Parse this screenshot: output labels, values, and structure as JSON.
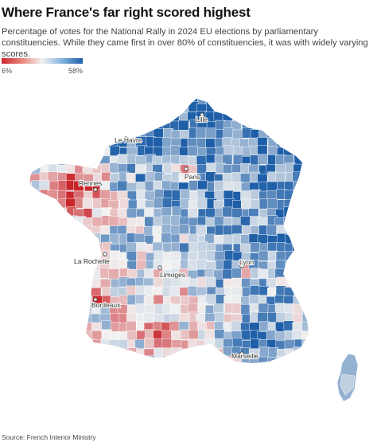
{
  "header": {
    "title": "Where France's far right scored highest",
    "subtitle": "Percentage of votes for the National Rally in 2024 EU elections by parliamentary constituencies. While they came first in over 80% of constituencies, it was with widely varying scores."
  },
  "legend": {
    "min_label": "6%",
    "max_label": "58%",
    "min_value": 6,
    "max_value": 58,
    "colors": {
      "low": "#c9262c",
      "mid": "#f2f2f2",
      "high": "#1e5fa8"
    }
  },
  "map": {
    "cities": [
      {
        "id": "lille",
        "name": "Lille"
      },
      {
        "id": "le-havre",
        "name": "Le Havre"
      },
      {
        "id": "paris",
        "name": "Paris"
      },
      {
        "id": "rennes",
        "name": "Rennes"
      },
      {
        "id": "la-rochelle",
        "name": "La Rochelle"
      },
      {
        "id": "limoges",
        "name": "Limoges"
      },
      {
        "id": "lyon",
        "name": "Lyon"
      },
      {
        "id": "bordeaux",
        "name": "Bordeaux"
      },
      {
        "id": "marseille",
        "name": "Marseille"
      }
    ]
  },
  "footer": {
    "source": "Source: French Interior Ministry"
  }
}
